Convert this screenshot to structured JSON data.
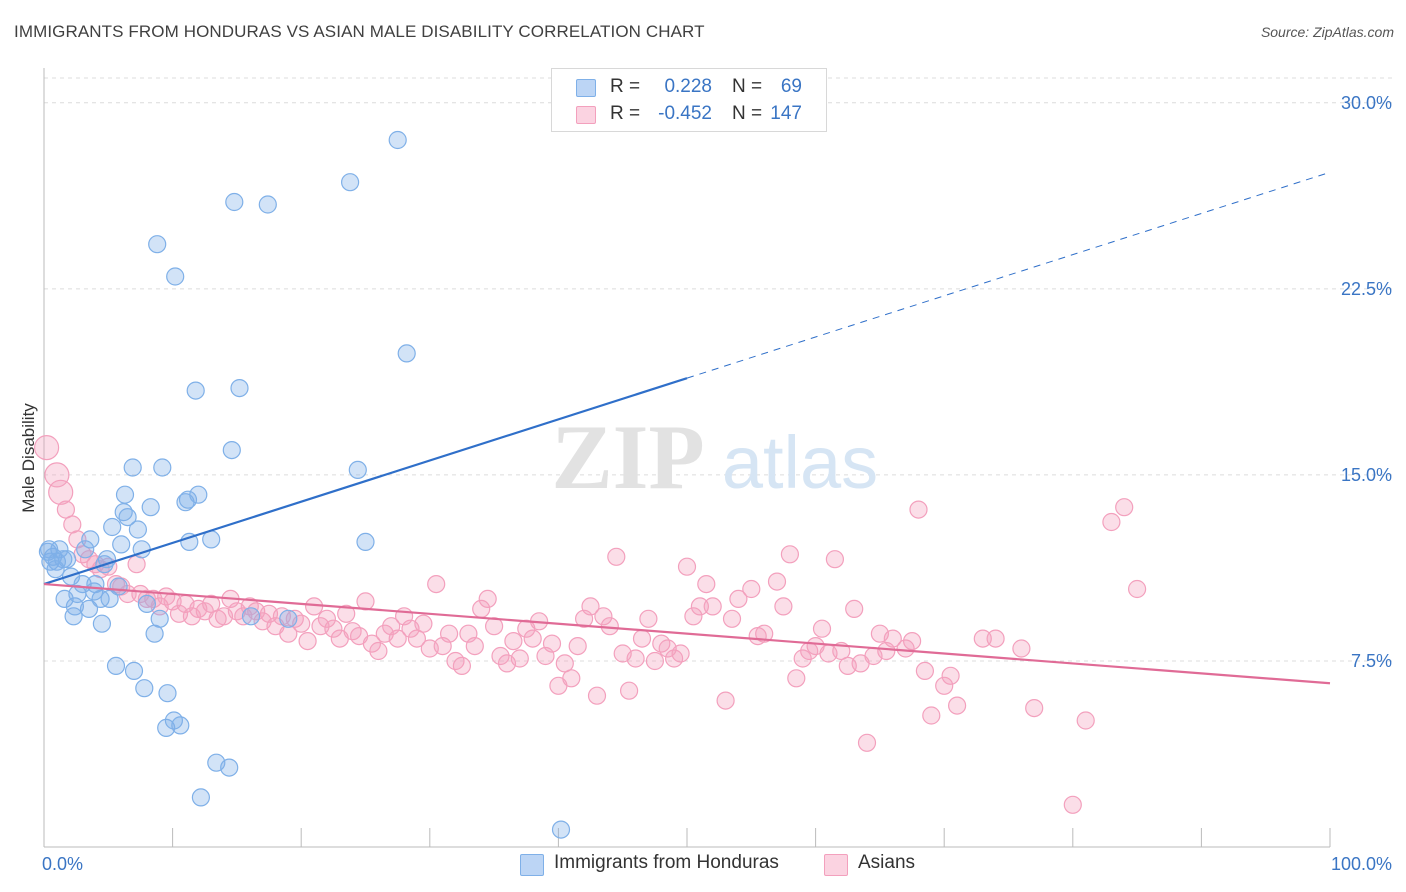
{
  "title": "IMMIGRANTS FROM HONDURAS VS ASIAN MALE DISABILITY CORRELATION CHART",
  "source": "Source: ZipAtlas.com",
  "watermark": {
    "zip": "ZIP",
    "atlas": "atlas"
  },
  "legend": {
    "rows": [
      {
        "r_label": "R =",
        "r_value": "0.228",
        "n_label": "N =",
        "n_value": "69",
        "color": "#7fb0e8"
      },
      {
        "r_label": "R =",
        "r_value": "-0.452",
        "n_label": "N =",
        "n_value": "147",
        "color": "#f3a0bd"
      }
    ]
  },
  "bottom_legend": [
    {
      "label": "Immigrants from Honduras",
      "color": "#7fb0e8"
    },
    {
      "label": "Asians",
      "color": "#f3a0bd"
    }
  ],
  "chart_data": {
    "type": "scatter",
    "title": "IMMIGRANTS FROM HONDURAS VS ASIAN MALE DISABILITY CORRELATION CHART",
    "xlabel": "",
    "ylabel": "Male Disability",
    "xlim": [
      0,
      100
    ],
    "ylim": [
      0,
      31
    ],
    "x_tick_labels": [
      "0.0%",
      "100.0%"
    ],
    "y_ticks": [
      7.5,
      15.0,
      22.5,
      30.0
    ],
    "y_tick_labels": [
      "7.5%",
      "15.0%",
      "22.5%",
      "30.0%"
    ],
    "grid": true,
    "series": [
      {
        "name": "Immigrants from Honduras",
        "color": "#7fb0e8",
        "line_color": "#2f6fc9",
        "trend": {
          "x0": 0,
          "y0": 10.6,
          "x1": 50,
          "y1": 18.9,
          "dashed_to_x": 100,
          "dashed_to_y": 27.2
        },
        "points": [
          [
            0.3,
            11.9
          ],
          [
            0.5,
            11.5
          ],
          [
            0.7,
            11.7
          ],
          [
            1.0,
            11.5
          ],
          [
            1.2,
            12.0
          ],
          [
            1.5,
            11.6
          ],
          [
            1.8,
            11.6
          ],
          [
            1.6,
            10.0
          ],
          [
            2.1,
            10.9
          ],
          [
            2.3,
            9.3
          ],
          [
            2.4,
            9.7
          ],
          [
            2.6,
            10.2
          ],
          [
            3.0,
            10.6
          ],
          [
            3.2,
            12.0
          ],
          [
            3.5,
            9.6
          ],
          [
            3.6,
            12.4
          ],
          [
            3.9,
            10.3
          ],
          [
            4.0,
            10.6
          ],
          [
            4.4,
            10.0
          ],
          [
            4.5,
            9.0
          ],
          [
            4.7,
            11.4
          ],
          [
            4.9,
            11.6
          ],
          [
            5.1,
            10.0
          ],
          [
            5.3,
            12.9
          ],
          [
            5.6,
            7.3
          ],
          [
            5.8,
            10.5
          ],
          [
            6.0,
            12.2
          ],
          [
            6.2,
            13.5
          ],
          [
            6.3,
            14.2
          ],
          [
            6.5,
            13.3
          ],
          [
            6.9,
            15.3
          ],
          [
            7.0,
            7.1
          ],
          [
            7.3,
            12.8
          ],
          [
            7.6,
            12.0
          ],
          [
            7.8,
            6.4
          ],
          [
            8.0,
            9.8
          ],
          [
            8.3,
            13.7
          ],
          [
            8.6,
            8.6
          ],
          [
            8.8,
            24.3
          ],
          [
            9.0,
            9.2
          ],
          [
            9.2,
            15.3
          ],
          [
            9.5,
            4.8
          ],
          [
            9.6,
            6.2
          ],
          [
            10.1,
            5.1
          ],
          [
            10.2,
            23.0
          ],
          [
            10.6,
            4.9
          ],
          [
            11.0,
            13.9
          ],
          [
            11.3,
            12.3
          ],
          [
            11.2,
            14.0
          ],
          [
            11.8,
            18.4
          ],
          [
            12.0,
            14.2
          ],
          [
            12.2,
            2.0
          ],
          [
            13.0,
            12.4
          ],
          [
            13.4,
            3.4
          ],
          [
            14.4,
            3.2
          ],
          [
            14.6,
            16.0
          ],
          [
            14.8,
            26.0
          ],
          [
            15.2,
            18.5
          ],
          [
            16.1,
            9.3
          ],
          [
            17.4,
            25.9
          ],
          [
            19.0,
            9.2
          ],
          [
            23.8,
            26.8
          ],
          [
            24.4,
            15.2
          ],
          [
            25.0,
            12.3
          ],
          [
            27.5,
            28.5
          ],
          [
            28.2,
            19.9
          ],
          [
            40.2,
            0.7
          ],
          [
            0.4,
            12.0
          ],
          [
            0.9,
            11.2
          ]
        ]
      },
      {
        "name": "Asians",
        "color": "#f3a0bd",
        "line_color": "#e06b96",
        "trend": {
          "x0": 0,
          "y0": 10.6,
          "x1": 100,
          "y1": 6.6
        },
        "points": [
          [
            0.2,
            16.1
          ],
          [
            1.0,
            15.0
          ],
          [
            1.3,
            14.3
          ],
          [
            1.7,
            13.6
          ],
          [
            2.2,
            13.0
          ],
          [
            2.6,
            12.4
          ],
          [
            3.0,
            11.8
          ],
          [
            3.5,
            11.6
          ],
          [
            4.0,
            11.4
          ],
          [
            4.4,
            11.2
          ],
          [
            5.0,
            11.3
          ],
          [
            5.6,
            10.6
          ],
          [
            6.0,
            10.5
          ],
          [
            6.5,
            10.2
          ],
          [
            7.2,
            11.4
          ],
          [
            7.5,
            10.2
          ],
          [
            8.0,
            10.0
          ],
          [
            8.5,
            10.0
          ],
          [
            9.0,
            9.7
          ],
          [
            9.5,
            10.1
          ],
          [
            10.0,
            9.9
          ],
          [
            10.5,
            9.4
          ],
          [
            11.0,
            9.8
          ],
          [
            11.5,
            9.3
          ],
          [
            12.0,
            9.6
          ],
          [
            12.5,
            9.5
          ],
          [
            13.0,
            9.8
          ],
          [
            13.5,
            9.2
          ],
          [
            14.0,
            9.3
          ],
          [
            14.5,
            10.0
          ],
          [
            15.0,
            9.5
          ],
          [
            15.5,
            9.3
          ],
          [
            16.0,
            9.7
          ],
          [
            16.5,
            9.5
          ],
          [
            17.0,
            9.1
          ],
          [
            17.5,
            9.4
          ],
          [
            18.0,
            8.9
          ],
          [
            18.5,
            9.3
          ],
          [
            19.0,
            8.6
          ],
          [
            19.5,
            9.2
          ],
          [
            20.0,
            9.0
          ],
          [
            20.5,
            8.3
          ],
          [
            21.0,
            9.7
          ],
          [
            21.5,
            8.9
          ],
          [
            22.0,
            9.2
          ],
          [
            22.5,
            8.8
          ],
          [
            23.0,
            8.4
          ],
          [
            23.5,
            9.4
          ],
          [
            24.0,
            8.7
          ],
          [
            24.5,
            8.5
          ],
          [
            25.0,
            9.9
          ],
          [
            25.5,
            8.2
          ],
          [
            26.0,
            7.9
          ],
          [
            26.5,
            8.6
          ],
          [
            27.0,
            8.9
          ],
          [
            27.5,
            8.4
          ],
          [
            28.0,
            9.3
          ],
          [
            28.5,
            8.8
          ],
          [
            29.0,
            8.4
          ],
          [
            29.5,
            9.0
          ],
          [
            30.0,
            8.0
          ],
          [
            30.5,
            10.6
          ],
          [
            31.0,
            8.1
          ],
          [
            31.5,
            8.6
          ],
          [
            32.0,
            7.5
          ],
          [
            32.5,
            7.3
          ],
          [
            33.0,
            8.6
          ],
          [
            33.5,
            8.1
          ],
          [
            34.0,
            9.6
          ],
          [
            34.5,
            10.0
          ],
          [
            35.0,
            8.9
          ],
          [
            35.5,
            7.7
          ],
          [
            36.0,
            7.4
          ],
          [
            36.5,
            8.3
          ],
          [
            37.0,
            7.6
          ],
          [
            37.5,
            8.8
          ],
          [
            38.0,
            8.4
          ],
          [
            38.5,
            9.1
          ],
          [
            39.0,
            7.7
          ],
          [
            39.5,
            8.2
          ],
          [
            40.0,
            6.5
          ],
          [
            40.5,
            7.4
          ],
          [
            41.0,
            6.8
          ],
          [
            41.5,
            8.1
          ],
          [
            42.0,
            9.2
          ],
          [
            42.5,
            9.7
          ],
          [
            43.0,
            6.1
          ],
          [
            43.5,
            9.3
          ],
          [
            44.0,
            8.9
          ],
          [
            44.5,
            11.7
          ],
          [
            45.0,
            7.8
          ],
          [
            45.5,
            6.3
          ],
          [
            46.0,
            7.6
          ],
          [
            46.5,
            8.4
          ],
          [
            47.0,
            9.2
          ],
          [
            47.5,
            7.5
          ],
          [
            48.0,
            8.2
          ],
          [
            48.5,
            8.0
          ],
          [
            49.0,
            7.6
          ],
          [
            49.5,
            7.8
          ],
          [
            50.0,
            11.3
          ],
          [
            50.5,
            9.3
          ],
          [
            51.0,
            9.7
          ],
          [
            51.5,
            10.6
          ],
          [
            52.0,
            9.7
          ],
          [
            53.0,
            5.9
          ],
          [
            53.5,
            9.2
          ],
          [
            54.0,
            10.0
          ],
          [
            55.0,
            10.4
          ],
          [
            55.5,
            8.5
          ],
          [
            56.0,
            8.6
          ],
          [
            57.0,
            10.7
          ],
          [
            57.5,
            9.7
          ],
          [
            58.0,
            11.8
          ],
          [
            58.5,
            6.8
          ],
          [
            59.0,
            7.6
          ],
          [
            59.5,
            7.9
          ],
          [
            60.0,
            8.1
          ],
          [
            60.5,
            8.8
          ],
          [
            61.0,
            7.8
          ],
          [
            61.5,
            11.6
          ],
          [
            62.0,
            7.9
          ],
          [
            62.5,
            7.3
          ],
          [
            63.0,
            9.6
          ],
          [
            63.5,
            7.4
          ],
          [
            64.0,
            4.2
          ],
          [
            64.5,
            7.7
          ],
          [
            65.0,
            8.6
          ],
          [
            65.5,
            7.9
          ],
          [
            66.0,
            8.4
          ],
          [
            67.0,
            8.0
          ],
          [
            67.5,
            8.3
          ],
          [
            68.0,
            13.6
          ],
          [
            68.5,
            7.1
          ],
          [
            69.0,
            5.3
          ],
          [
            70.0,
            6.5
          ],
          [
            70.5,
            6.9
          ],
          [
            71.0,
            5.7
          ],
          [
            73.0,
            8.4
          ],
          [
            74.0,
            8.4
          ],
          [
            76.0,
            8.0
          ],
          [
            77.0,
            5.6
          ],
          [
            80.0,
            1.7
          ],
          [
            81.0,
            5.1
          ],
          [
            83.0,
            13.1
          ],
          [
            84.0,
            13.7
          ],
          [
            85.0,
            10.4
          ]
        ]
      }
    ]
  }
}
